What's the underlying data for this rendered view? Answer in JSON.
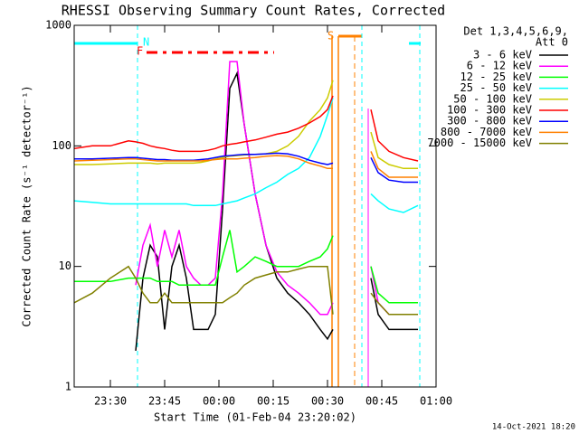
{
  "chart_data": {
    "type": "line",
    "title": "RHESSI Observing Summary Count Rates, Corrected",
    "xlabel": "Start Time (01-Feb-04 23:20:02)",
    "ylabel": "Corrected Count Rate (s⁻¹ detector⁻¹)",
    "legend_title": [
      "Det 1,3,4,5,6,9,",
      "Att 0"
    ],
    "footer": "14-Oct-2021 18:20",
    "annotations": [
      "N",
      "F",
      "S"
    ],
    "log_y": true,
    "xlim": [
      0,
      100
    ],
    "xticks": [
      {
        "value": 10,
        "label": "23:30"
      },
      {
        "value": 25,
        "label": "23:45"
      },
      {
        "value": 40,
        "label": "00:00"
      },
      {
        "value": 55,
        "label": "00:15"
      },
      {
        "value": 70,
        "label": "00:30"
      },
      {
        "value": 85,
        "label": "00:45"
      },
      {
        "value": 100,
        "label": "01:00"
      }
    ],
    "ylim": [
      1,
      1000
    ],
    "yticks": [
      1,
      10,
      100,
      1000
    ],
    "x": [
      0,
      5,
      10,
      15,
      17,
      19,
      21,
      23,
      25,
      27,
      29,
      31,
      33,
      35,
      37,
      39,
      41,
      43,
      45,
      47,
      50,
      53,
      56,
      59,
      62,
      65,
      68,
      70,
      71.5,
      76,
      82,
      84,
      87,
      91,
      95
    ],
    "series": [
      {
        "name": "3 - 6 keV",
        "color": "#000000",
        "values": [
          null,
          null,
          null,
          null,
          2,
          8,
          15,
          12,
          3,
          10,
          15,
          8,
          3,
          3,
          3,
          4,
          30,
          300,
          400,
          150,
          40,
          15,
          8,
          6,
          5,
          4,
          3,
          2.5,
          3,
          null,
          8,
          4,
          3,
          3,
          3
        ]
      },
      {
        "name": "6 - 12 keV",
        "color": "#ff00ff",
        "values": [
          null,
          null,
          null,
          null,
          7,
          15,
          22,
          10,
          20,
          12,
          20,
          10,
          8,
          7,
          7,
          8,
          40,
          500,
          500,
          150,
          40,
          15,
          9,
          7,
          6,
          5,
          4,
          4,
          5,
          null,
          10,
          5,
          4,
          4,
          4
        ]
      },
      {
        "name": "12 - 25 keV",
        "color": "#00ff00",
        "values": [
          7.5,
          7.5,
          7.5,
          8,
          8,
          8,
          8,
          7.5,
          7.5,
          7.5,
          7,
          7,
          7,
          7,
          7,
          7,
          12,
          20,
          9,
          10,
          12,
          11,
          10,
          10,
          10,
          11,
          12,
          14,
          18,
          null,
          10,
          6,
          5,
          5,
          5
        ]
      },
      {
        "name": "25 - 50 keV",
        "color": "#00ffff",
        "values": [
          35,
          34,
          33,
          33,
          33,
          33,
          33,
          33,
          33,
          33,
          33,
          33,
          32,
          32,
          32,
          32,
          33,
          34,
          35,
          37,
          40,
          45,
          50,
          58,
          65,
          80,
          120,
          180,
          250,
          null,
          40,
          35,
          30,
          28,
          32
        ]
      },
      {
        "name": "50 - 100 keV",
        "color": "#cccc00",
        "values": [
          70,
          70,
          71,
          72,
          72,
          72,
          72,
          71,
          72,
          72,
          72,
          72,
          72,
          73,
          75,
          78,
          80,
          82,
          83,
          84,
          85,
          86,
          90,
          100,
          120,
          160,
          200,
          250,
          350,
          null,
          130,
          80,
          70,
          65,
          65
        ]
      },
      {
        "name": "100 - 300 keV",
        "color": "#ff0000",
        "values": [
          95,
          100,
          100,
          110,
          108,
          105,
          100,
          97,
          95,
          92,
          90,
          90,
          90,
          90,
          92,
          95,
          100,
          103,
          105,
          108,
          112,
          118,
          125,
          130,
          140,
          155,
          175,
          200,
          260,
          null,
          200,
          110,
          90,
          80,
          75
        ]
      },
      {
        "name": "300 - 800 keV",
        "color": "#0000ff",
        "values": [
          78,
          78,
          79,
          80,
          80,
          79,
          78,
          77,
          77,
          76,
          76,
          76,
          76,
          77,
          78,
          80,
          82,
          83,
          84,
          85,
          85,
          86,
          87,
          86,
          82,
          76,
          72,
          70,
          72,
          null,
          80,
          60,
          52,
          50,
          50
        ]
      },
      {
        "name": "800 - 7000 keV",
        "color": "#ff8000",
        "values": [
          75,
          76,
          77,
          78,
          78,
          77,
          76,
          75,
          75,
          75,
          75,
          75,
          75,
          75,
          76,
          77,
          78,
          78,
          78,
          79,
          80,
          82,
          83,
          82,
          78,
          72,
          68,
          65,
          65,
          null,
          90,
          65,
          55,
          55,
          55
        ]
      },
      {
        "name": "7000 - 15000 keV",
        "color": "#808000",
        "values": [
          5,
          6,
          8,
          10,
          8,
          6,
          5,
          5,
          6,
          5,
          5,
          5,
          5,
          5,
          5,
          5,
          5,
          5.5,
          6,
          7,
          8,
          8.5,
          9,
          9,
          9.5,
          10,
          10,
          10,
          4,
          null,
          6,
          5,
          4,
          4,
          4
        ]
      }
    ]
  }
}
